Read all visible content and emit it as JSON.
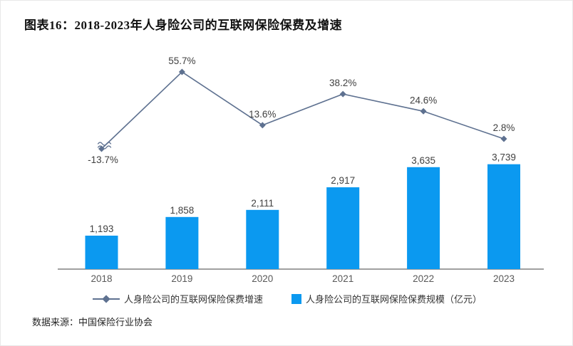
{
  "title": "图表16：2018-2023年人身险公司的互联网保险保费及增速",
  "source": "数据来源：中国保险行业协会",
  "legend": {
    "line_label": "人身险公司的互联网保险保费增速",
    "bar_label": "人身险公司的互联网保险保费规模（亿元）"
  },
  "colors": {
    "bar": "#0B99F0",
    "line": "#5E7190",
    "axis": "#808080",
    "data_label": "#404040",
    "tick_label": "#595959"
  },
  "chart_data": {
    "type": "combo-bar-line",
    "title": "图表16：2018-2023年人身险公司的互联网保险保费及增速",
    "categories": [
      "2018",
      "2019",
      "2020",
      "2021",
      "2022",
      "2023"
    ],
    "series": [
      {
        "name": "人身险公司的互联网保险保费规模（亿元）",
        "type": "bar",
        "unit": "亿元",
        "values": [
          1193,
          1858,
          2111,
          2917,
          3635,
          3739
        ],
        "labels": [
          "1,193",
          "1,858",
          "2,111",
          "2,917",
          "3,635",
          "3,739"
        ],
        "color": "#0B99F0"
      },
      {
        "name": "人身险公司的互联网保险保费增速",
        "type": "line",
        "unit": "%",
        "values": [
          -13.7,
          55.7,
          13.6,
          38.2,
          24.6,
          2.8
        ],
        "labels": [
          "-13.7%",
          "55.7%",
          "13.6%",
          "38.2%",
          "24.6%",
          "2.8%"
        ],
        "color": "#5E7190",
        "axis_break_at_first_point": true
      }
    ],
    "legend_position": "bottom",
    "grid": false,
    "value_axes_hidden": true,
    "xlabel": "",
    "ylabel": ""
  }
}
